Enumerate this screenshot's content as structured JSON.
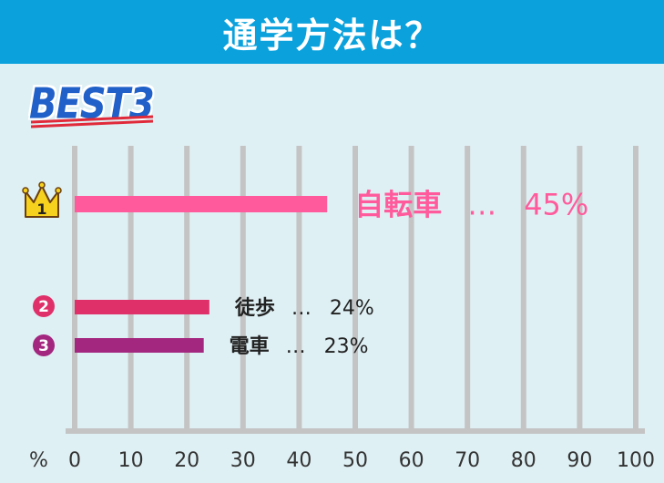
{
  "header": {
    "title": "通学方法は？"
  },
  "badge": {
    "text": "BEST3"
  },
  "colors": {
    "header_bg": "#0aa1dd",
    "background": "#dff0f4",
    "bar_1": "#ff5b9c",
    "bar_2": "#e0306a",
    "bar_3": "#a3267f",
    "grid": "#c4c4c4",
    "crown": "#f6d11d"
  },
  "chart_data": {
    "type": "bar",
    "orientation": "horizontal",
    "categories": [
      "自転車",
      "徒歩",
      "電車"
    ],
    "values": [
      45,
      24,
      23
    ],
    "ranks": [
      "1",
      "2",
      "3"
    ],
    "data_labels": [
      "45%",
      "24%",
      "23%"
    ],
    "separator": "…",
    "x_unit_label": "%",
    "xlim": [
      0,
      100
    ],
    "xticks": [
      "0",
      "10",
      "20",
      "30",
      "40",
      "50",
      "60",
      "70",
      "80",
      "90",
      "100"
    ],
    "grid": true
  }
}
